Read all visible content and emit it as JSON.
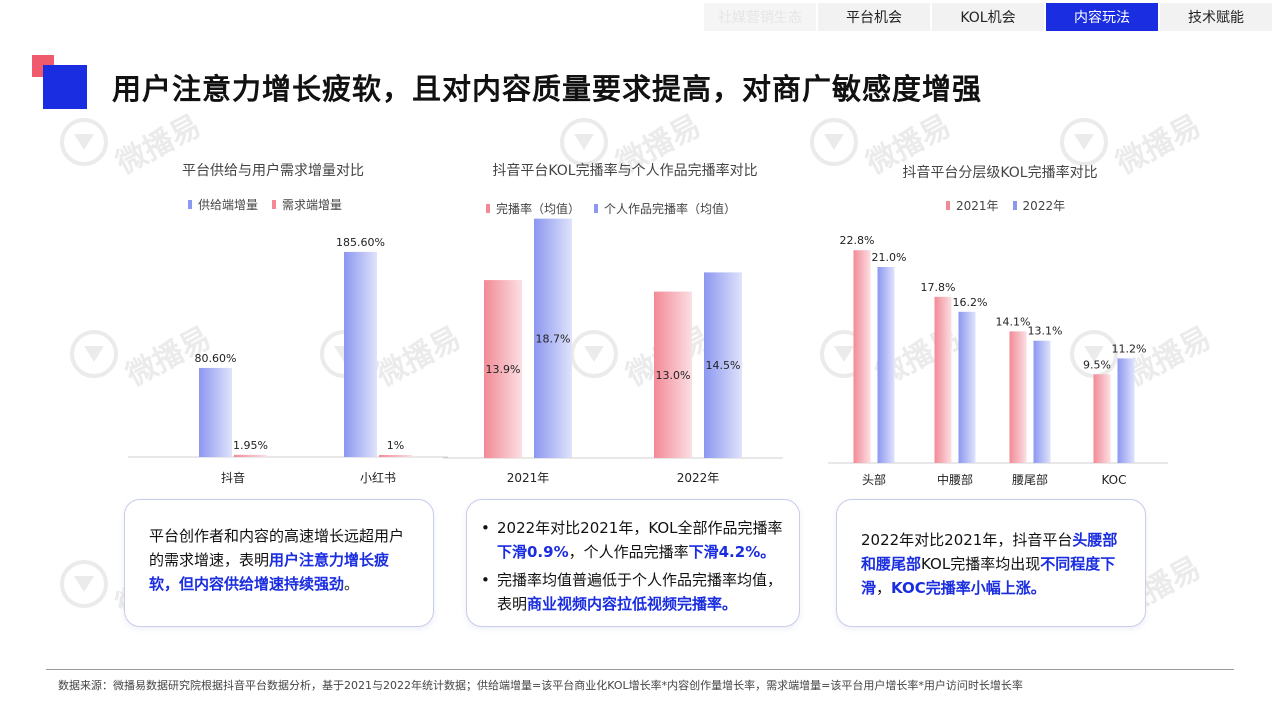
{
  "nav": {
    "tabs": [
      {
        "label": "社媒营销生态",
        "state": "faded"
      },
      {
        "label": "平台机会",
        "state": "normal"
      },
      {
        "label": "KOL机会",
        "state": "normal"
      },
      {
        "label": "内容玩法",
        "state": "active"
      },
      {
        "label": "技术赋能",
        "state": "normal"
      }
    ]
  },
  "title": "用户注意力增长疲软，且对内容质量要求提高，对商广敏感度增强",
  "watermark": {
    "text": "微播易"
  },
  "colors": {
    "blue": "#1a2de0",
    "bar_blue": "#8c97f0",
    "bar_red": "#f28a96"
  },
  "chart_data": [
    {
      "type": "bar",
      "title": "平台供给与用户需求增量对比",
      "categories": [
        "抖音",
        "小红书"
      ],
      "series": [
        {
          "name": "供给端增量",
          "values": [
            80.6,
            185.6
          ],
          "labels": [
            "80.60%",
            "185.60%"
          ],
          "color": "blue"
        },
        {
          "name": "需求端增量",
          "values": [
            1.95,
            1
          ],
          "labels": [
            "1.95%",
            "1%"
          ],
          "color": "red"
        }
      ],
      "ylim": [
        0,
        200
      ],
      "legend": "top",
      "label_pos": "above"
    },
    {
      "type": "bar",
      "title": "抖音平台KOL完播率与个人作品完播率对比",
      "categories": [
        "2021年",
        "2022年"
      ],
      "series": [
        {
          "name": "完播率（均值）",
          "values": [
            13.9,
            13.0
          ],
          "labels": [
            "13.9%",
            "13.0%"
          ],
          "color": "red"
        },
        {
          "name": "个人作品完播率（均值）",
          "values": [
            18.7,
            14.5
          ],
          "labels": [
            "18.7%",
            "14.5%"
          ],
          "color": "blue"
        }
      ],
      "ylim": [
        0,
        20
      ],
      "legend": "top",
      "label_pos": "inside"
    },
    {
      "type": "bar",
      "title": "抖音平台分层级KOL完播率对比",
      "categories": [
        "头部",
        "中腰部",
        "腰尾部",
        "KOC"
      ],
      "series": [
        {
          "name": "2021年",
          "values": [
            22.8,
            17.8,
            14.1,
            9.5
          ],
          "labels": [
            "22.8%",
            "17.8%",
            "14.1%",
            "9.5%"
          ],
          "color": "red"
        },
        {
          "name": "2022年",
          "values": [
            21.0,
            16.2,
            13.1,
            11.2
          ],
          "labels": [
            "21.0%",
            "16.2%",
            "13.1%",
            "11.2%"
          ],
          "color": "blue"
        }
      ],
      "ylim": [
        0,
        24
      ],
      "legend": "top",
      "label_pos": "above"
    }
  ],
  "box1": {
    "p1": "平台创作者和内容的高速增长远超用户的需求增速，表明",
    "h1": "用户注意力增长疲软，但内容供给增速持续强劲",
    "p2": "。"
  },
  "box2": {
    "b1_p1": "2022年对比2021年，KOL全部作品完播率",
    "b1_h1": "下滑0.9%",
    "b1_p2": "，个人作品完播率",
    "b1_h2": "下滑4.2%。",
    "b2_p1": "完播率均值普遍低于个人作品完播率均值，表明",
    "b2_h1": "商业视频内容拉低视频完播率。"
  },
  "box3": {
    "p1": "2022年对比2021年，抖音平台",
    "h1": "头腰部和腰尾部",
    "p2": "KOL完播率均出现",
    "h2": "不同程度下滑",
    "p3": "，",
    "h3": "KOC完播率小幅上涨。"
  },
  "footnote": "数据来源：微播易数据研究院根据抖音平台数据分析，基于2021与2022年统计数据；供给端增量=该平台商业化KOL增长率*内容创作量增长率，需求端增量=该平台用户增长率*用户访问时长增长率"
}
